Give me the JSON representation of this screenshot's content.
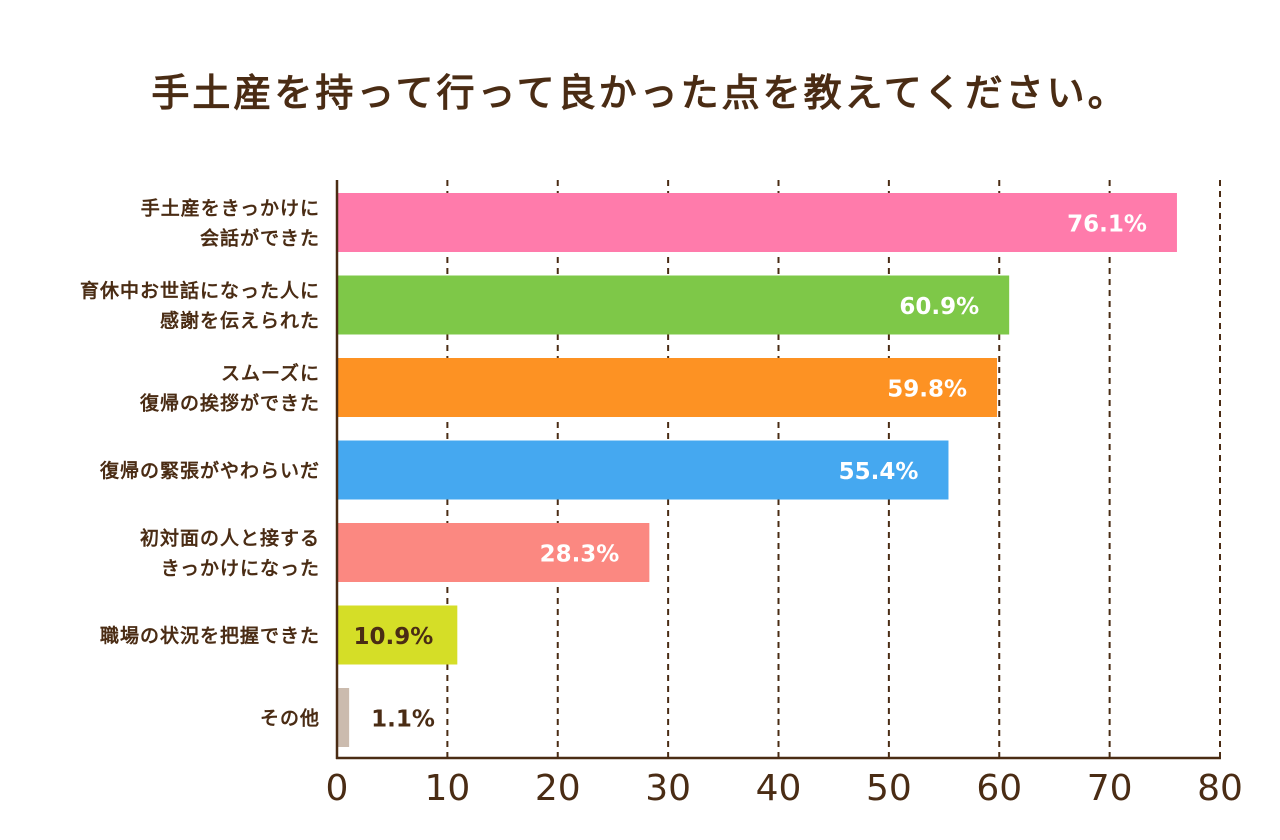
{
  "chart_data": {
    "type": "bar",
    "orientation": "horizontal",
    "title": "手土産を持って行って良かった点を教えてください。",
    "categories": [
      [
        "手土産をきっかけに",
        "会話ができた"
      ],
      [
        "育休中お世話になった人に",
        "感謝を伝えられた"
      ],
      [
        "スムーズに",
        "復帰の挨拶ができた"
      ],
      [
        "復帰の緊張がやわらいだ"
      ],
      [
        "初対面の人と接する",
        "きっかけになった"
      ],
      [
        "職場の状況を把握できた"
      ],
      [
        "その他"
      ]
    ],
    "values": [
      76.1,
      60.9,
      59.8,
      55.4,
      28.3,
      10.9,
      1.1
    ],
    "value_labels": [
      "76.1%",
      "60.9%",
      "59.8%",
      "55.4%",
      "28.3%",
      "10.9%",
      "1.1%"
    ],
    "colors": [
      "#ff7bab",
      "#7ec848",
      "#fd9223",
      "#45a8f0",
      "#fb8881",
      "#d5de27",
      "#cbbbae"
    ],
    "label_colors": [
      "#ffffff",
      "#ffffff",
      "#ffffff",
      "#ffffff",
      "#ffffff",
      "#4a2c14",
      "#4a2c14"
    ],
    "xlim": [
      0,
      80
    ],
    "xticks": [
      "0",
      "10",
      "20",
      "30",
      "40",
      "50",
      "60",
      "70",
      "80"
    ],
    "grid": true,
    "text_color": "#4a2c14"
  }
}
